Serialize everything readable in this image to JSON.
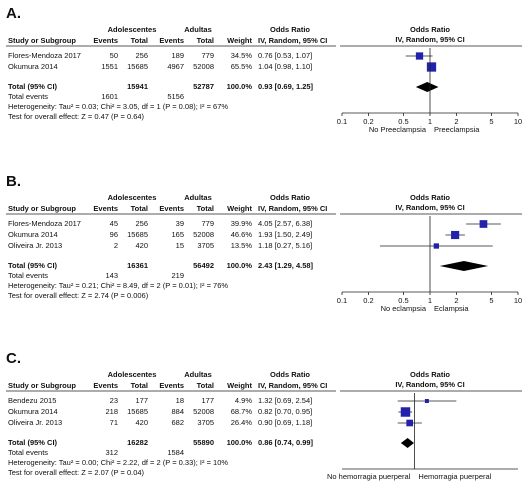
{
  "chart_data": [
    {
      "type": "forest",
      "label": "A.",
      "group_headers": [
        "Adolescentes",
        "Adultas"
      ],
      "columns": [
        "Study or Subgroup",
        "Events",
        "Total",
        "Events",
        "Total",
        "Weight",
        "IV, Random, 95% CI"
      ],
      "or_header": "Odds Ratio",
      "plot_header": "Odds Ratio",
      "plot_subheader": "IV, Random, 95% CI",
      "studies": [
        {
          "name": "Flores-Mendoza 2017",
          "events1": 50,
          "total1": 256,
          "events2": 189,
          "total2": 779,
          "weight": 34.5,
          "weight_label": "34.5%",
          "or": 0.76,
          "lo": 0.53,
          "hi": 1.07,
          "ci_label": "0.76 [0.53, 1.07]"
        },
        {
          "name": "Okumura 2014",
          "events1": 1551,
          "total1": 15685,
          "events2": 4967,
          "total2": 52008,
          "weight": 65.5,
          "weight_label": "65.5%",
          "or": 1.04,
          "lo": 0.98,
          "hi": 1.1,
          "ci_label": "1.04 [0.98, 1.10]"
        }
      ],
      "total": {
        "label": "Total (95% CI)",
        "total1": 15941,
        "total2": 52787,
        "weight_label": "100.0%",
        "or": 0.93,
        "lo": 0.69,
        "hi": 1.25,
        "ci_label": "0.93 [0.69, 1.25]"
      },
      "events_row": {
        "label": "Total events",
        "events1": 1601,
        "events2": 5156
      },
      "heterogeneity": "Heterogeneity: Tau² = 0.03; Chi² = 3.05, df = 1 (P = 0.08); I² = 67%",
      "overall_effect": "Test for overall effect: Z = 0.47 (P = 0.64)",
      "direction_labels": [
        "No Preeclampsia",
        "Preeclampsia"
      ],
      "log_x": true,
      "xlim": [
        0.1,
        10
      ],
      "xticks": [
        0.1,
        0.2,
        0.5,
        1,
        2,
        5,
        10
      ],
      "marker_color": "#2222aa"
    },
    {
      "type": "forest",
      "label": "B.",
      "group_headers": [
        "Adolescentes",
        "Adultas"
      ],
      "columns": [
        "Study or Subgroup",
        "Events",
        "Total",
        "Events",
        "Total",
        "Weight",
        "IV, Random, 95% CI"
      ],
      "or_header": "Odds Ratio",
      "plot_header": "Odds Ratio",
      "plot_subheader": "IV, Random, 95% CI",
      "studies": [
        {
          "name": "Flores-Mendoza 2017",
          "events1": 45,
          "total1": 256,
          "events2": 39,
          "total2": 779,
          "weight": 39.9,
          "weight_label": "39.9%",
          "or": 4.05,
          "lo": 2.57,
          "hi": 6.38,
          "ci_label": "4.05 [2.57, 6.38]"
        },
        {
          "name": "Okumura 2014",
          "events1": 96,
          "total1": 15685,
          "events2": 165,
          "total2": 52008,
          "weight": 46.6,
          "weight_label": "46.6%",
          "or": 1.93,
          "lo": 1.5,
          "hi": 2.49,
          "ci_label": "1.93 [1.50, 2.49]"
        },
        {
          "name": "Oliveira Jr. 2013",
          "events1": 2,
          "total1": 420,
          "events2": 15,
          "total2": 3705,
          "weight": 13.5,
          "weight_label": "13.5%",
          "or": 1.18,
          "lo": 0.27,
          "hi": 5.16,
          "ci_label": "1.18 [0.27, 5.16]"
        }
      ],
      "total": {
        "label": "Total (95% CI)",
        "total1": 16361,
        "total2": 56492,
        "weight_label": "100.0%",
        "or": 2.43,
        "lo": 1.29,
        "hi": 4.58,
        "ci_label": "2.43 [1.29, 4.58]"
      },
      "events_row": {
        "label": "Total events",
        "events1": 143,
        "events2": 219
      },
      "heterogeneity": "Heterogeneity: Tau² = 0.21; Chi² = 8.49, df = 2 (P = 0.01); I² = 76%",
      "overall_effect": "Test for overall effect: Z = 2.74 (P = 0.006)",
      "direction_labels": [
        "No eclampsia",
        "Eclampsia"
      ],
      "log_x": true,
      "xlim": [
        0.1,
        10
      ],
      "xticks": [
        0.1,
        0.2,
        0.5,
        1,
        2,
        5,
        10
      ],
      "marker_color": "#2222aa"
    },
    {
      "type": "forest",
      "label": "C.",
      "group_headers": [
        "Adolescentes",
        "Adultas"
      ],
      "columns": [
        "Study or Subgroup",
        "Events",
        "Total",
        "Events",
        "Total",
        "Weight",
        "IV, Random, 95% CI"
      ],
      "or_header": "Odds Ratio",
      "plot_header": "Odds Ratio",
      "plot_subheader": "IV, Random, 95% CI",
      "studies": [
        {
          "name": "Bendezu 2015",
          "events1": 23,
          "total1": 177,
          "events2": 18,
          "total2": 177,
          "weight": 4.9,
          "weight_label": "4.9%",
          "or": 1.32,
          "lo": 0.69,
          "hi": 2.54,
          "ci_label": "1.32 [0.69, 2.54]"
        },
        {
          "name": "Okumura 2014",
          "events1": 218,
          "total1": 15685,
          "events2": 884,
          "total2": 52008,
          "weight": 68.7,
          "weight_label": "68.7%",
          "or": 0.82,
          "lo": 0.7,
          "hi": 0.95,
          "ci_label": "0.82 [0.70, 0.95]"
        },
        {
          "name": "Oliveira Jr. 2013",
          "events1": 71,
          "total1": 420,
          "events2": 682,
          "total2": 3705,
          "weight": 26.4,
          "weight_label": "26.4%",
          "or": 0.9,
          "lo": 0.69,
          "hi": 1.18,
          "ci_label": "0.90 [0.69, 1.18]"
        }
      ],
      "total": {
        "label": "Total (95% CI)",
        "total1": 16282,
        "total2": 55890,
        "weight_label": "100.0%",
        "or": 0.86,
        "lo": 0.74,
        "hi": 0.99,
        "ci_label": "0.86 [0.74, 0.99]"
      },
      "events_row": {
        "label": "Total events",
        "events1": 312,
        "events2": 1584
      },
      "heterogeneity": "Heterogeneity: Tau² = 0.00; Chi² = 2.22, df = 2 (P = 0.33); I² = 10%",
      "overall_effect": "Test for overall effect: Z = 2.07 (P = 0.04)",
      "direction_labels": [
        "No hemorragia puerperal",
        "Hemorragia puerperal"
      ],
      "log_x": true,
      "xlim": [
        0.2,
        10
      ],
      "marker_color": "#2222aa"
    }
  ]
}
